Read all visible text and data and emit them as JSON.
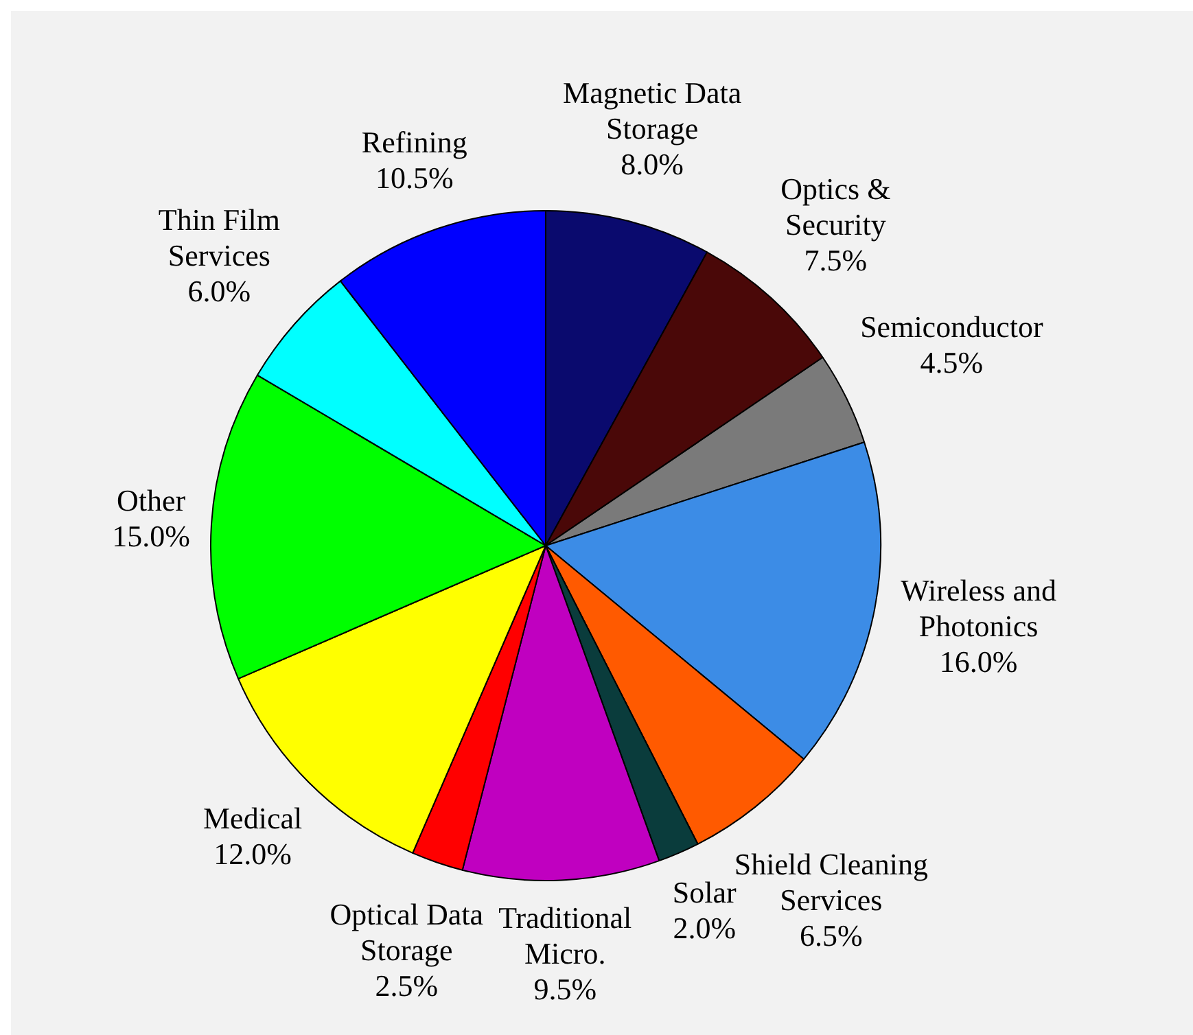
{
  "chart_data": {
    "type": "pie",
    "categories": [
      "Magnetic Data Storage",
      "Optics & Security",
      "Semiconductor",
      "Wireless and Photonics",
      "Shield Cleaning Services",
      "Solar",
      "Traditional Micro.",
      "Optical Data Storage",
      "Medical",
      "Other",
      "Thin Film Services",
      "Refining"
    ],
    "values": [
      8,
      7.5,
      4.5,
      16,
      6.5,
      2,
      9.5,
      2.5,
      12,
      15,
      6,
      10.5
    ],
    "value_labels": [
      "8.0%",
      "7.5%",
      "4.5%",
      "16.0%",
      "6.5%",
      "2.0%",
      "9.5%",
      "2.5%",
      "12.0%",
      "15.0%",
      "6.0%",
      "10.5%"
    ],
    "colors": [
      "#0a0a6e",
      "#4a0808",
      "#7a7a7a",
      "#3c8ce6",
      "#ff5a00",
      "#0a3c3c",
      "#c000c0",
      "#ff0000",
      "#ffff00",
      "#00ff00",
      "#00ffff",
      "#0000ff"
    ],
    "legend": false
  }
}
